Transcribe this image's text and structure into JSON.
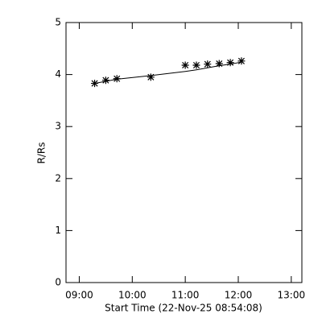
{
  "chart_data": {
    "type": "scatter",
    "xlabel": "Start Time (22-Nov-25 08:54:08)",
    "ylabel": "R/Rs",
    "x": [
      9.29,
      9.5,
      9.71,
      10.35,
      11.0,
      11.21,
      11.42,
      11.64,
      11.85,
      12.06
    ],
    "series": [
      {
        "values": [
          3.83,
          3.89,
          3.92,
          3.95,
          4.18,
          4.18,
          4.2,
          4.21,
          4.23,
          4.26
        ],
        "marker": "asterisk",
        "color": "#000000"
      },
      {
        "values": [
          3.83,
          3.87,
          3.91,
          3.98,
          4.06,
          4.09,
          4.13,
          4.17,
          4.2,
          4.24
        ],
        "marker": "line",
        "color": "#000000"
      }
    ],
    "xlim": [
      8.75,
      13.2
    ],
    "xticks": [
      {
        "value": 9,
        "label": "09:00"
      },
      {
        "value": 10,
        "label": "10:00"
      },
      {
        "value": 11,
        "label": "11:00"
      },
      {
        "value": 12,
        "label": "12:00"
      },
      {
        "value": 13,
        "label": "13:00"
      }
    ],
    "ylim": [
      0,
      5
    ],
    "yticks": [
      0,
      1,
      2,
      3,
      4,
      5
    ]
  }
}
